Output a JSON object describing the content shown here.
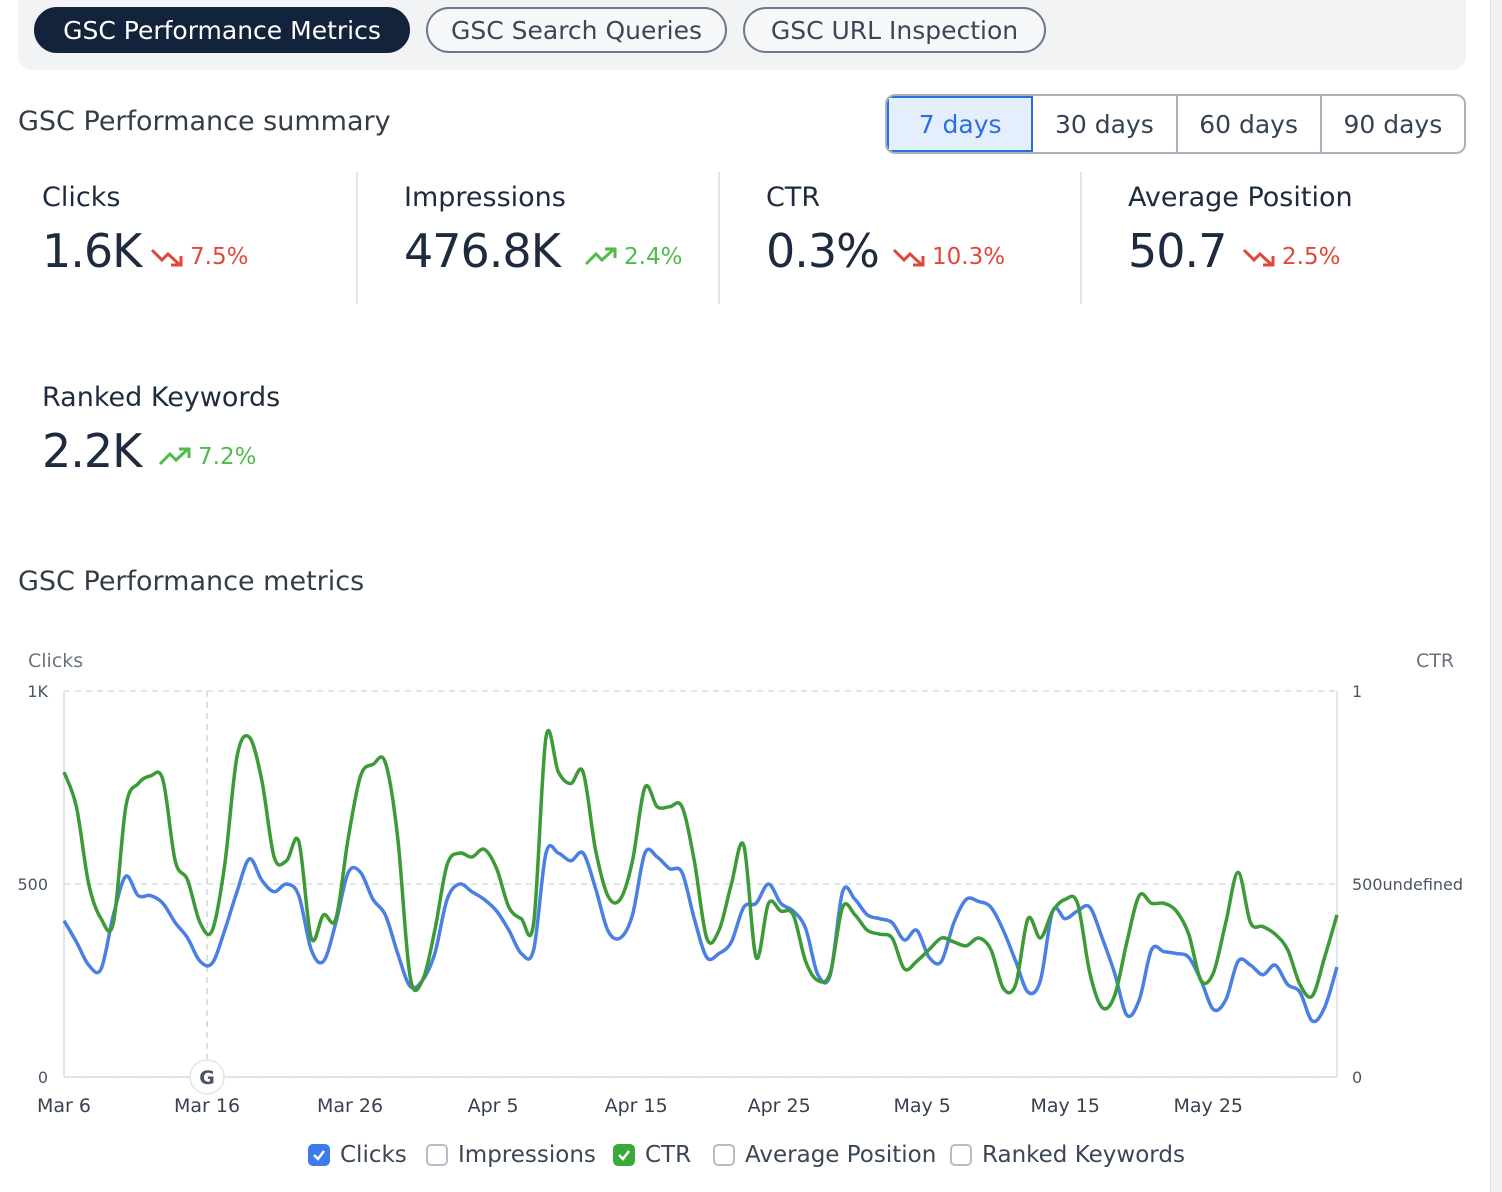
{
  "tabs": [
    {
      "label": "GSC Performance Metrics",
      "active": true
    },
    {
      "label": "GSC Search Queries",
      "active": false
    },
    {
      "label": "GSC URL Inspection",
      "active": false
    }
  ],
  "summary": {
    "title": "GSC Performance summary",
    "ranges": [
      "7 days",
      "30 days",
      "60 days",
      "90 days"
    ],
    "active_range": "7 days",
    "metrics": [
      {
        "label": "Clicks",
        "value": "1.6K",
        "change": "7.5%",
        "direction": "down"
      },
      {
        "label": "Impressions",
        "value": "476.8K",
        "change": "2.4%",
        "direction": "up"
      },
      {
        "label": "CTR",
        "value": "0.3%",
        "change": "10.3%",
        "direction": "down"
      },
      {
        "label": "Average Position",
        "value": "50.7",
        "change": "2.5%",
        "direction": "down"
      },
      {
        "label": "Ranked Keywords",
        "value": "2.2K",
        "change": "7.2%",
        "direction": "up"
      }
    ]
  },
  "chart_title": "GSC Performance metrics",
  "colors": {
    "clicks": "#4a7fe3",
    "ctr": "#3c9a37",
    "down": "#e0483a",
    "up": "#4fbb4a",
    "accent": "#2a6fe0"
  },
  "legend": [
    {
      "label": "Clicks",
      "checked": true,
      "color": "#3d7be8"
    },
    {
      "label": "Impressions",
      "checked": false
    },
    {
      "label": "CTR",
      "checked": true,
      "color": "#3aa83a"
    },
    {
      "label": "Average Position",
      "checked": false
    },
    {
      "label": "Ranked Keywords",
      "checked": false
    }
  ],
  "google_marker_icon": "google-g-icon",
  "chart_data": {
    "type": "line",
    "left_axis_title": "Clicks",
    "right_axis_title": "CTR",
    "left_ticks": [
      "0",
      "500",
      "1K"
    ],
    "right_ticks": [
      "0",
      "500undefined",
      "1"
    ],
    "ylim": [
      0,
      1000
    ],
    "x_labels": [
      "Mar 6",
      "Mar 16",
      "Mar 26",
      "Apr 5",
      "Apr 15",
      "Apr 25",
      "May 5",
      "May 15",
      "May 25"
    ],
    "x_range": [
      "Mar 6",
      "Jun 3"
    ],
    "grid": "dashed horizontal",
    "series": [
      {
        "name": "Clicks",
        "color": "#4a7fe3",
        "values": [
          405,
          350,
          290,
          280,
          420,
          520,
          470,
          470,
          450,
          400,
          360,
          300,
          295,
          380,
          480,
          565,
          510,
          480,
          500,
          470,
          330,
          300,
          400,
          530,
          530,
          460,
          420,
          320,
          235,
          250,
          320,
          460,
          500,
          480,
          460,
          430,
          380,
          320,
          330,
          580,
          580,
          560,
          580,
          490,
          380,
          360,
          420,
          580,
          570,
          540,
          530,
          410,
          310,
          320,
          350,
          440,
          450,
          500,
          450,
          430,
          385,
          265,
          265,
          480,
          460,
          420,
          410,
          400,
          355,
          380,
          310,
          300,
          400,
          460,
          455,
          440,
          380,
          300,
          220,
          250,
          430,
          410,
          430,
          440,
          360,
          270,
          160,
          200,
          330,
          325,
          320,
          310,
          250,
          175,
          200,
          300,
          290,
          265,
          290,
          240,
          220,
          145,
          180,
          285
        ]
      },
      {
        "name": "CTR",
        "color": "#3c9a37",
        "values": [
          790,
          700,
          500,
          410,
          400,
          700,
          760,
          780,
          770,
          560,
          510,
          400,
          380,
          550,
          830,
          880,
          770,
          570,
          560,
          610,
          360,
          420,
          410,
          620,
          780,
          810,
          815,
          620,
          260,
          250,
          380,
          550,
          580,
          570,
          590,
          540,
          440,
          410,
          400,
          880,
          790,
          760,
          790,
          590,
          470,
          460,
          560,
          750,
          700,
          700,
          700,
          560,
          360,
          380,
          500,
          600,
          310,
          450,
          430,
          420,
          300,
          250,
          270,
          440,
          420,
          380,
          370,
          360,
          280,
          300,
          330,
          360,
          350,
          340,
          360,
          330,
          230,
          240,
          410,
          360,
          430,
          460,
          450,
          270,
          180,
          210,
          350,
          470,
          450,
          450,
          430,
          370,
          250,
          270,
          400,
          530,
          400,
          390,
          370,
          330,
          240,
          210,
          310,
          420
        ]
      }
    ]
  }
}
